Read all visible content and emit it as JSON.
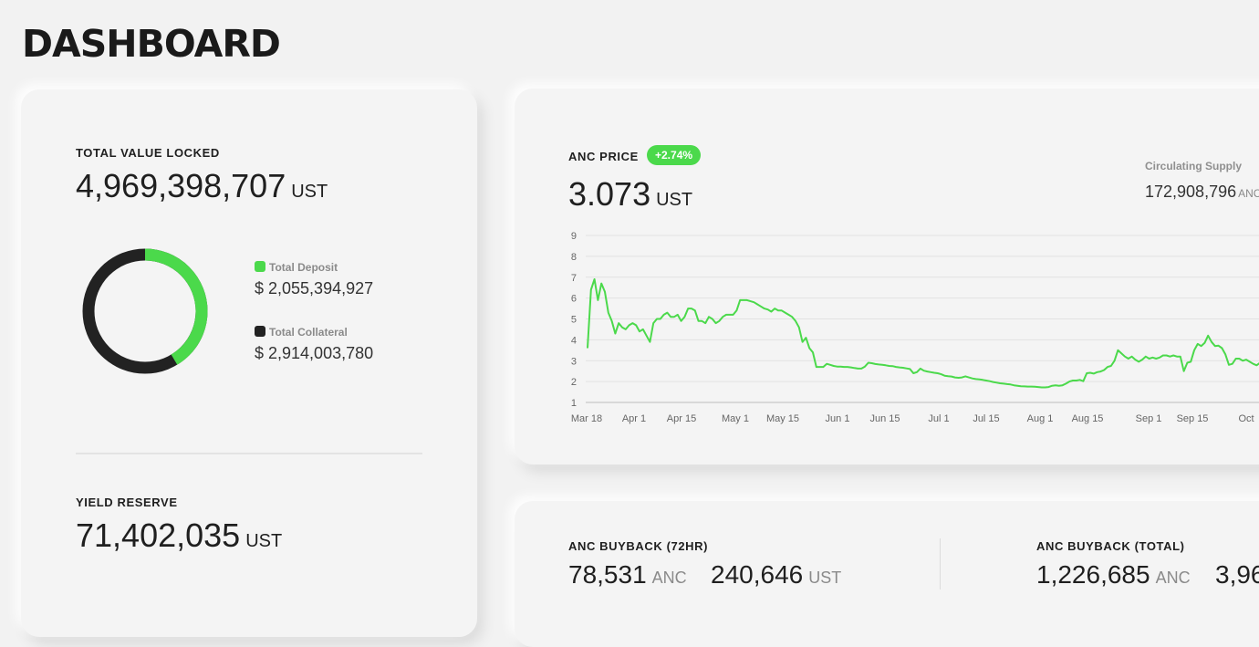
{
  "page": {
    "title": "DASHBOARD"
  },
  "tvl": {
    "label": "TOTAL VALUE LOCKED",
    "value": "4,969,398,707",
    "unit": "UST",
    "donut": {
      "deposit_fraction": 0.4136,
      "deposit_color": "#4bd94b",
      "collateral_color": "#222222"
    },
    "legend": [
      {
        "label": "Total Deposit",
        "value": "$ 2,055,394,927",
        "color": "#4bd94b"
      },
      {
        "label": "Total Collateral",
        "value": "$ 2,914,003,780",
        "color": "#222222"
      }
    ]
  },
  "yield_reserve": {
    "label": "YIELD RESERVE",
    "value": "71,402,035",
    "unit": "UST"
  },
  "anc_price": {
    "label": "ANC PRICE",
    "change": "+2.74%",
    "value": "3.073",
    "unit": "UST",
    "circulating_supply_label": "Circulating Supply",
    "circulating_supply_value": "172,908,796",
    "circulating_supply_unit": "ANC"
  },
  "chart_data": {
    "type": "line",
    "title": "",
    "xlabel": "",
    "ylabel": "",
    "ylim": [
      1,
      9
    ],
    "yticks": [
      1,
      2,
      3,
      4,
      5,
      6,
      7,
      8,
      9
    ],
    "grid": true,
    "x_ticks": [
      "Mar 18",
      "Apr 1",
      "Apr 15",
      "May 1",
      "May 15",
      "Jun 1",
      "Jun 15",
      "Jul 1",
      "Jul 15",
      "Aug 1",
      "Aug 15",
      "Sep 1",
      "Sep 15",
      "Oct"
    ],
    "line_color": "#4bd94b",
    "series": [
      {
        "values": [
          3.6,
          6.4,
          6.9,
          5.9,
          6.7,
          6.3,
          5.3,
          4.9,
          4.3,
          4.8,
          4.6,
          4.5,
          4.7,
          4.8,
          4.7,
          4.4,
          4.5,
          4.2,
          3.9,
          4.8,
          5.0,
          5.0,
          5.2,
          5.3,
          5.1,
          5.1,
          5.2,
          4.9,
          5.1,
          5.5,
          5.5,
          5.4,
          4.9,
          4.9,
          4.8,
          5.1,
          5.0,
          4.8,
          4.9,
          5.1,
          5.2,
          5.2,
          5.2,
          5.4,
          5.9,
          5.9,
          5.9,
          5.85,
          5.8,
          5.7,
          5.6,
          5.5,
          5.45,
          5.35,
          5.5,
          5.4,
          5.4,
          5.3,
          5.2,
          5.1,
          4.9,
          4.6,
          3.9,
          4.1,
          3.6,
          3.4,
          2.7,
          2.7,
          2.7,
          2.85,
          2.8,
          2.75,
          2.72,
          2.72,
          2.7,
          2.7,
          2.68,
          2.65,
          2.62,
          2.62,
          2.72,
          2.9,
          2.88,
          2.84,
          2.82,
          2.8,
          2.78,
          2.75,
          2.74,
          2.7,
          2.68,
          2.66,
          2.63,
          2.6,
          2.4,
          2.45,
          2.62,
          2.52,
          2.48,
          2.45,
          2.42,
          2.4,
          2.35,
          2.28,
          2.26,
          2.24,
          2.2,
          2.18,
          2.2,
          2.25,
          2.2,
          2.15,
          2.12,
          2.1,
          2.08,
          2.05,
          2.02,
          1.98,
          1.95,
          1.92,
          1.9,
          1.88,
          1.86,
          1.82,
          1.8,
          1.78,
          1.77,
          1.76,
          1.76,
          1.75,
          1.74,
          1.72,
          1.72,
          1.74,
          1.8,
          1.82,
          1.8,
          1.82,
          1.9,
          2.0,
          2.05,
          2.05,
          2.08,
          2.02,
          2.4,
          2.42,
          2.38,
          2.45,
          2.48,
          2.55,
          2.7,
          2.75,
          3.0,
          3.5,
          3.35,
          3.2,
          3.1,
          3.2,
          3.05,
          2.95,
          3.05,
          3.2,
          3.1,
          3.15,
          3.1,
          3.15,
          3.25,
          3.25,
          3.2,
          3.25,
          3.2,
          3.2,
          2.5,
          2.9,
          2.95,
          3.5,
          3.8,
          3.7,
          3.85,
          4.2,
          3.9,
          3.7,
          3.72,
          3.6,
          3.3,
          2.8,
          2.85,
          3.1,
          3.1,
          3.0,
          3.05,
          2.95,
          2.85,
          2.78,
          2.9,
          3.1,
          3.2,
          3.3,
          3.2
        ]
      }
    ]
  },
  "buyback_72h": {
    "label": "ANC BUYBACK (72HR)",
    "anc_value": "78,531",
    "anc_unit": "ANC",
    "ust_value": "240,646",
    "ust_unit": "UST"
  },
  "buyback_total": {
    "label": "ANC BUYBACK (TOTAL)",
    "anc_value": "1,226,685",
    "anc_unit": "ANC",
    "ust_value": "3,96"
  }
}
